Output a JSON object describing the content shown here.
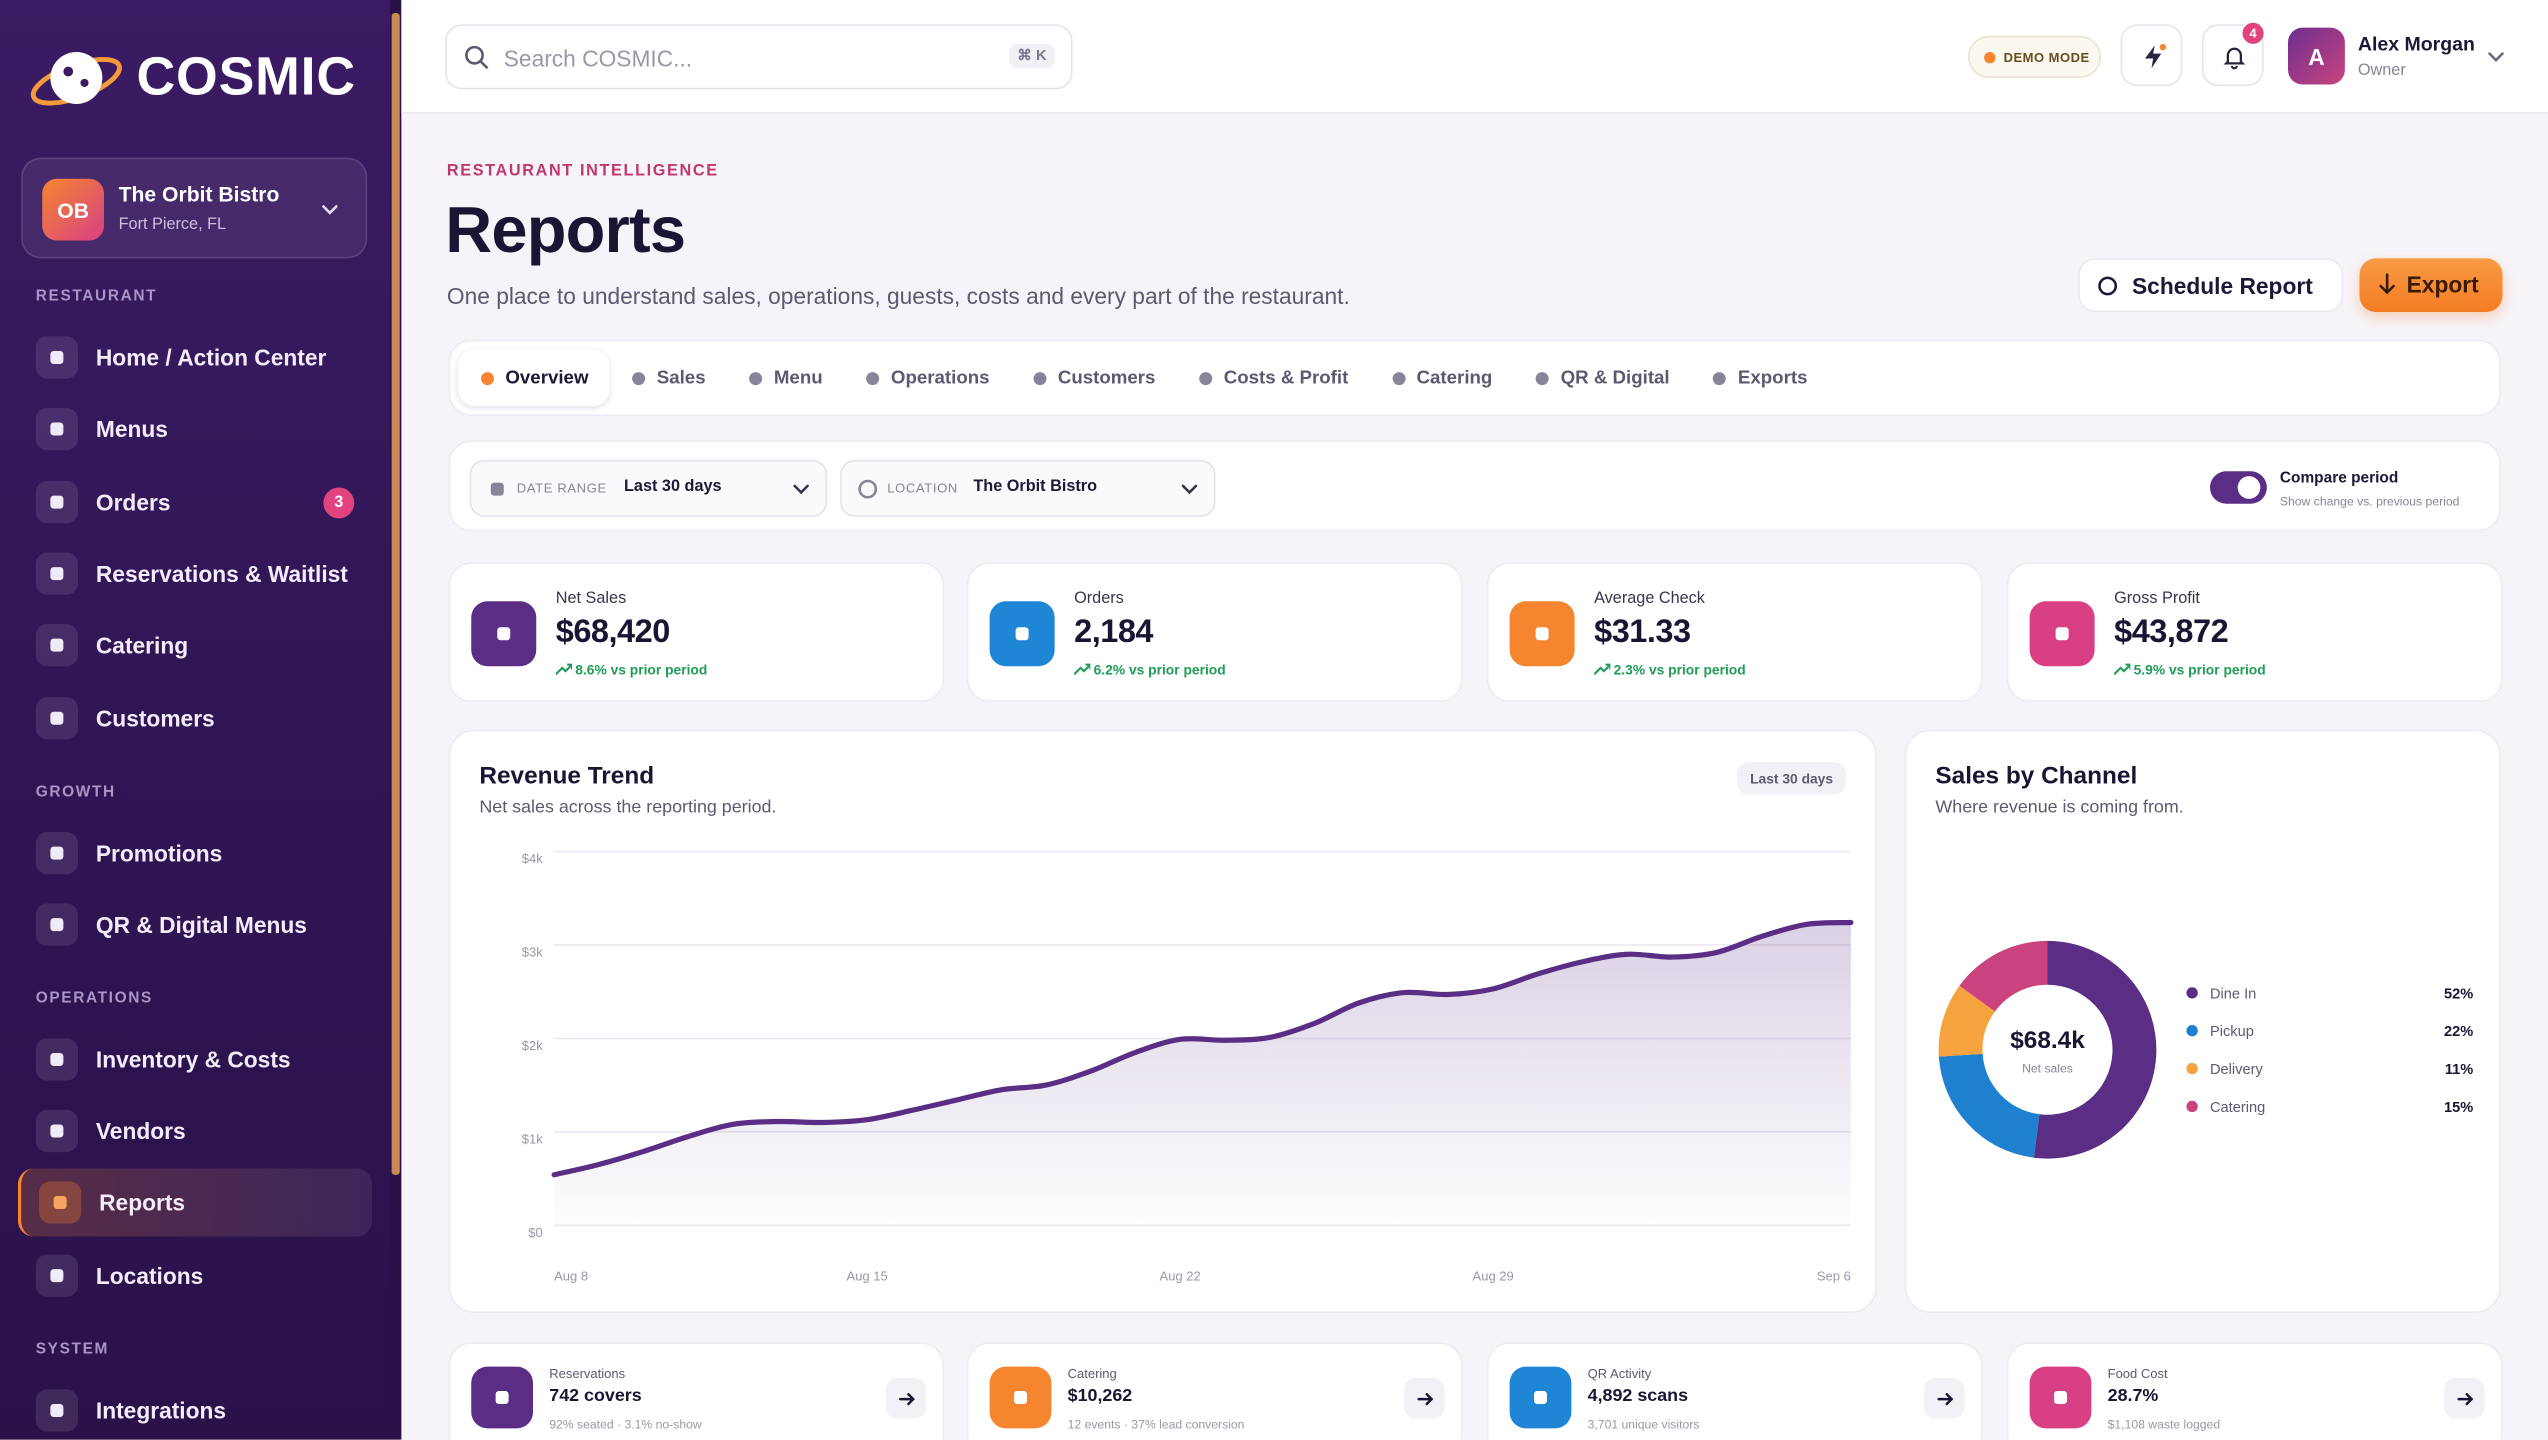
{
  "brand": "COSMIC",
  "restaurant": {
    "initials": "OB",
    "name": "The Orbit Bistro",
    "location": "Fort Pierce, FL"
  },
  "nav": [
    {
      "section": "RESTAURANT",
      "items": [
        {
          "label": "Home / Action Center"
        },
        {
          "label": "Menus"
        },
        {
          "label": "Orders",
          "badge": 3
        },
        {
          "label": "Reservations & Waitlist"
        },
        {
          "label": "Catering"
        },
        {
          "label": "Customers"
        }
      ]
    },
    {
      "section": "GROWTH",
      "items": [
        {
          "label": "Promotions"
        },
        {
          "label": "QR & Digital Menus"
        }
      ]
    },
    {
      "section": "OPERATIONS",
      "items": [
        {
          "label": "Inventory & Costs"
        },
        {
          "label": "Vendors"
        },
        {
          "label": "Reports",
          "active": true
        },
        {
          "label": "Locations"
        }
      ]
    },
    {
      "section": "SYSTEM",
      "items": [
        {
          "label": "Integrations"
        }
      ]
    }
  ],
  "search": {
    "placeholder": "Search COSMIC...",
    "shortcut": "⌘ K"
  },
  "topbar": {
    "demo": "DEMO MODE",
    "notifications": 4,
    "user": {
      "initial": "A",
      "name": "Alex Morgan",
      "role": "Owner"
    }
  },
  "header": {
    "eyebrow": "RESTAURANT INTELLIGENCE",
    "title": "Reports",
    "subtitle": "One place to understand sales, operations, guests, costs and every part of the restaurant.",
    "schedule": "Schedule Report",
    "export": "Export"
  },
  "tabs": [
    "Overview",
    "Sales",
    "Menu",
    "Operations",
    "Customers",
    "Costs & Profit",
    "Catering",
    "QR & Digital",
    "Exports"
  ],
  "active_tab": 0,
  "filters": {
    "date_range": {
      "label": "DATE RANGE",
      "value": "Last 30 days"
    },
    "location": {
      "label": "LOCATION",
      "value": "The Orbit Bistro"
    },
    "compare": {
      "label": "Compare period",
      "hint": "Show change vs. previous period",
      "on": true
    }
  },
  "kpis": [
    {
      "label": "Net Sales",
      "value": "$68,420",
      "change": "8.6% vs prior period",
      "color": "#5b2e86"
    },
    {
      "label": "Orders",
      "value": "2,184",
      "change": "6.2% vs prior period",
      "color": "#1f86d6"
    },
    {
      "label": "Average Check",
      "value": "$31.33",
      "change": "2.3% vs prior period",
      "color": "#f5862f"
    },
    {
      "label": "Gross Profit",
      "value": "$43,872",
      "change": "5.9% vs prior period",
      "color": "#d93f85"
    }
  ],
  "chart_data": [
    {
      "type": "line",
      "title": "Revenue Trend",
      "subtitle": "Net sales across the reporting period.",
      "badge": "Last 30 days",
      "categories": [
        "Aug 8",
        null,
        null,
        null,
        null,
        null,
        null,
        "Aug 15",
        null,
        null,
        null,
        null,
        null,
        null,
        "Aug 22",
        null,
        null,
        null,
        null,
        null,
        null,
        "Aug 29",
        null,
        null,
        null,
        null,
        null,
        null,
        null,
        "Sep 6"
      ],
      "values": [
        540,
        650,
        790,
        950,
        1080,
        1110,
        1100,
        1130,
        1230,
        1340,
        1450,
        1500,
        1650,
        1850,
        1990,
        1980,
        2010,
        2160,
        2380,
        2490,
        2470,
        2530,
        2690,
        2820,
        2900,
        2870,
        2920,
        3090,
        3220,
        3240
      ],
      "color": "#5b2e86",
      "ylim": [
        0,
        4000
      ],
      "yticks": [
        {
          "value": 0,
          "label": "$0"
        },
        {
          "value": 1000,
          "label": "$1k"
        },
        {
          "value": 2000,
          "label": "$2k"
        },
        {
          "value": 3000,
          "label": "$3k"
        },
        {
          "value": 4000,
          "label": "$4k"
        }
      ],
      "grid": true
    },
    {
      "type": "pie",
      "title": "Sales by Channel",
      "subtitle": "Where revenue is coming from.",
      "center_value": "$68.4k",
      "center_label": "Net sales",
      "categories": [
        "Dine In",
        "Pickup",
        "Delivery",
        "Catering"
      ],
      "values": [
        52,
        22,
        11,
        15
      ],
      "value_labels": [
        "52%",
        "22%",
        "11%",
        "15%"
      ],
      "colors": [
        "#5b2e86",
        "#1f80d0",
        "#f5a23f",
        "#c9437f"
      ],
      "donut": true
    }
  ],
  "summary_cards": [
    {
      "label": "Reservations",
      "value": "742 covers",
      "detail": "92% seated · 3.1% no-show",
      "color": "#5b2e86"
    },
    {
      "label": "Catering",
      "value": "$10,262",
      "detail": "12 events · 37% lead conversion",
      "color": "#f5862f"
    },
    {
      "label": "QR Activity",
      "value": "4,892 scans",
      "detail": "3,701 unique visitors",
      "color": "#1f86d6"
    },
    {
      "label": "Food Cost",
      "value": "28.7%",
      "detail": "$1,108 waste logged",
      "color": "#d93f85"
    }
  ]
}
